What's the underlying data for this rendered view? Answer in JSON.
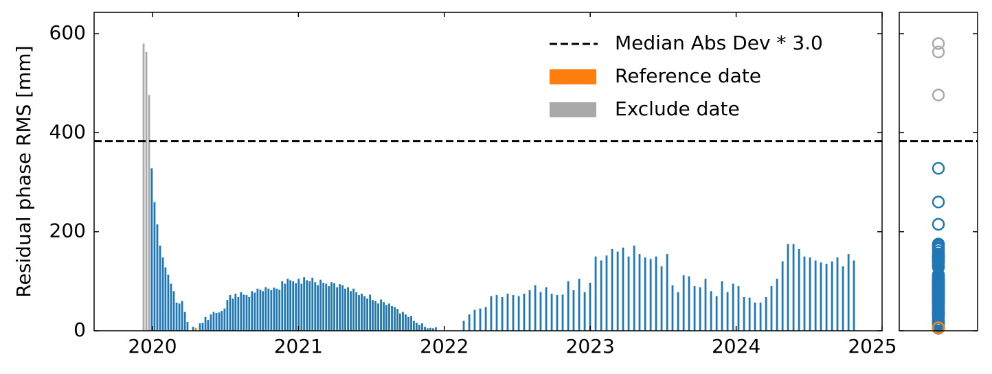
{
  "chart_data": {
    "type": "bar",
    "ylabel": "Residual phase RMS [mm]",
    "xlim": [
      2019.6,
      2025.0
    ],
    "xticks": [
      2020,
      2021,
      2022,
      2023,
      2024,
      2025
    ],
    "ylim": [
      0,
      643
    ],
    "yticks": [
      0,
      200,
      400,
      600
    ],
    "threshold": {
      "name": "Median Abs Dev * 3.0",
      "value": 383
    },
    "legend": "upper right",
    "series": [
      {
        "color": "#1f77b4",
        "x": [
          2019.995,
          2020.014,
          2020.033,
          2020.052,
          2020.071,
          2020.089,
          2020.108,
          2020.127,
          2020.146,
          2020.165,
          2020.184,
          2020.203,
          2020.222,
          2020.24,
          2020.278,
          2020.325,
          2020.344,
          2020.363,
          2020.381,
          2020.4,
          2020.419,
          2020.438,
          2020.457,
          2020.475,
          2020.494,
          2020.513,
          2020.532,
          2020.551,
          2020.569,
          2020.588,
          2020.607,
          2020.626,
          2020.645,
          2020.663,
          2020.682,
          2020.701,
          2020.72,
          2020.739,
          2020.757,
          2020.776,
          2020.795,
          2020.814,
          2020.833,
          2020.851,
          2020.87,
          2020.889,
          2020.908,
          2020.927,
          2020.945,
          2020.964,
          2020.983,
          2021.002,
          2021.021,
          2021.039,
          2021.058,
          2021.077,
          2021.096,
          2021.115,
          2021.133,
          2021.152,
          2021.171,
          2021.19,
          2021.209,
          2021.227,
          2021.246,
          2021.265,
          2021.284,
          2021.303,
          2021.321,
          2021.34,
          2021.359,
          2021.378,
          2021.397,
          2021.415,
          2021.434,
          2021.453,
          2021.472,
          2021.491,
          2021.509,
          2021.528,
          2021.547,
          2021.566,
          2021.585,
          2021.603,
          2021.622,
          2021.641,
          2021.66,
          2021.679,
          2021.697,
          2021.716,
          2021.735,
          2021.754,
          2021.773,
          2021.791,
          2021.81,
          2021.829,
          2021.848,
          2021.867,
          2021.885,
          2021.904,
          2021.923,
          2021.942,
          2022.133,
          2022.171,
          2022.208,
          2022.246,
          2022.284,
          2022.321,
          2022.359,
          2022.397,
          2022.434,
          2022.472,
          2022.51,
          2022.547,
          2022.585,
          2022.623,
          2022.66,
          2022.698,
          2022.736,
          2022.773,
          2022.811,
          2022.849,
          2022.886,
          2022.924,
          2022.962,
          2022.999,
          2023.037,
          2023.075,
          2023.112,
          2023.15,
          2023.188,
          2023.225,
          2023.263,
          2023.301,
          2023.338,
          2023.376,
          2023.414,
          2023.451,
          2023.489,
          2023.527,
          2023.564,
          2023.602,
          2023.64,
          2023.677,
          2023.715,
          2023.753,
          2023.79,
          2023.828,
          2023.866,
          2023.903,
          2023.941,
          2023.979,
          2024.016,
          2024.054,
          2024.092,
          2024.129,
          2024.167,
          2024.205,
          2024.242,
          2024.28,
          2024.318,
          2024.355,
          2024.393,
          2024.431,
          2024.468,
          2024.506,
          2024.544,
          2024.581,
          2024.619,
          2024.657,
          2024.694,
          2024.732,
          2024.77,
          2024.807
        ],
        "values": [
          328,
          260,
          215,
          172,
          148,
          128,
          113,
          95,
          80,
          57,
          55,
          60,
          38,
          18,
          8,
          15,
          16,
          28,
          22,
          33,
          38,
          36,
          37,
          40,
          45,
          62,
          72,
          65,
          75,
          68,
          78,
          73,
          72,
          68,
          80,
          77,
          85,
          83,
          80,
          88,
          85,
          82,
          87,
          85,
          83,
          100,
          95,
          105,
          102,
          100,
          96,
          105,
          95,
          108,
          102,
          100,
          107,
          98,
          92,
          103,
          97,
          95,
          90,
          98,
          96,
          88,
          94,
          92,
          85,
          88,
          80,
          85,
          78,
          72,
          75,
          70,
          65,
          73,
          62,
          60,
          55,
          63,
          58,
          52,
          55,
          50,
          48,
          44,
          35,
          38,
          33,
          28,
          30,
          20,
          16,
          12,
          15,
          8,
          5,
          6,
          5,
          7,
          20,
          33,
          42,
          45,
          48,
          70,
          72,
          68,
          75,
          72,
          70,
          75,
          82,
          92,
          78,
          88,
          75,
          72,
          73,
          100,
          82,
          105,
          78,
          97,
          150,
          142,
          152,
          165,
          160,
          168,
          150,
          172,
          155,
          148,
          145,
          150,
          130,
          155,
          92,
          78,
          112,
          110,
          90,
          88,
          105,
          80,
          70,
          100,
          78,
          95,
          90,
          68,
          67,
          57,
          57,
          68,
          90,
          105,
          140,
          175,
          175,
          165,
          150,
          148,
          142,
          138,
          135,
          140,
          148,
          130,
          155,
          142
        ]
      },
      {
        "name": "Reference date",
        "color": "#ff7f0e",
        "x": [
          2020.297
        ],
        "values": [
          6
        ]
      },
      {
        "name": "Exclude date",
        "color": "#a9a9a9",
        "x": [
          2019.939,
          2019.958,
          2019.977
        ],
        "values": [
          580,
          563,
          476
        ]
      }
    ]
  }
}
